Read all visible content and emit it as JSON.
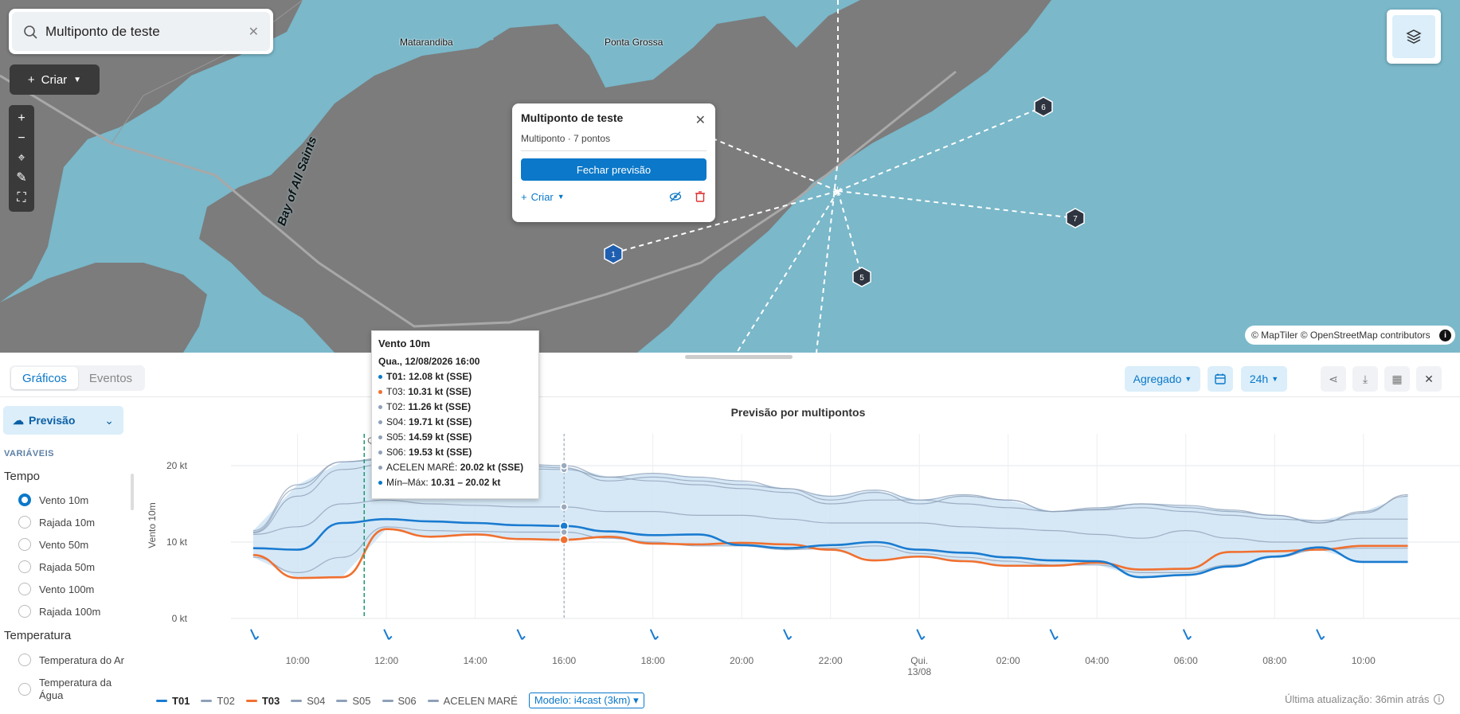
{
  "map": {
    "search_value": "Multiponto de teste",
    "criar_label": "Criar",
    "places": [
      "Matarandiba",
      "Ponta Grossa"
    ],
    "bay_label": "Bay of All Saints",
    "attribution": "© MapTiler © OpenStreetMap contributors",
    "markers": [
      "1",
      "5",
      "6",
      "7"
    ],
    "colors": {
      "water": "#7ab8ca",
      "land": "#7c7c7c",
      "accent": "#0b78c9"
    }
  },
  "popup": {
    "title": "Multiponto de teste",
    "subtitle": "Multiponto · 7 pontos",
    "close_forecast": "Fechar previsão",
    "criar_label": "Criar"
  },
  "toolbar": {
    "tabs": [
      "Gráficos",
      "Eventos"
    ],
    "aggregate": "Agregado",
    "range": "24h"
  },
  "sidebar": {
    "mode": "Previsão",
    "vars_header": "VARIÁVEIS",
    "groups": [
      {
        "label": "Tempo",
        "items": [
          {
            "label": "Vento 10m",
            "selected": true
          },
          {
            "label": "Rajada 10m",
            "selected": false
          },
          {
            "label": "Vento 50m",
            "selected": false
          },
          {
            "label": "Rajada 50m",
            "selected": false
          },
          {
            "label": "Vento 100m",
            "selected": false
          },
          {
            "label": "Rajada 100m",
            "selected": false
          }
        ]
      },
      {
        "label": "Temperatura",
        "items": [
          {
            "label": "Temperatura do Ar",
            "selected": false
          },
          {
            "label": "Temperatura da Água",
            "selected": false
          }
        ]
      }
    ]
  },
  "tooltip": {
    "title": "Vento 10m",
    "date": "Qua., 12/08/2026 16:00",
    "rows": [
      {
        "name": "T01",
        "value": "12.08 kt (SSE)",
        "color": "#0b78c9",
        "bold_name": true
      },
      {
        "name": "T03",
        "value": "10.31 kt (SSE)",
        "color": "#f07030",
        "bold_name": false
      },
      {
        "name": "T02",
        "value": "11.26 kt (SSE)",
        "color": "#8fa0b8",
        "bold_name": false
      },
      {
        "name": "S04",
        "value": "19.71 kt (SSE)",
        "color": "#8fa0b8",
        "bold_name": false
      },
      {
        "name": "S05",
        "value": "14.59 kt (SSE)",
        "color": "#8fa0b8",
        "bold_name": false
      },
      {
        "name": "S06",
        "value": "19.53 kt (SSE)",
        "color": "#8fa0b8",
        "bold_name": false
      },
      {
        "name": "ACELEN MARÉ",
        "value": "20.02 kt (SSE)",
        "color": "#8fa0b8",
        "bold_name": false
      },
      {
        "name": "Mín–Máx",
        "value": "10.31 – 20.02 kt",
        "color": "#0b78c9",
        "bold_name": false
      }
    ]
  },
  "chart_data": {
    "type": "line",
    "title": "Previsão por multipontos",
    "ylabel": "Vento 10m",
    "ylim": [
      0,
      20
    ],
    "y_ticks": [
      "0 kt",
      "10 kt",
      "20 kt"
    ],
    "x_ticks": [
      "10:00",
      "12:00",
      "14:00",
      "16:00",
      "18:00",
      "20:00",
      "22:00",
      "Qui.\n13/08",
      "02:00",
      "04:00",
      "06:00",
      "08:00",
      "10:00"
    ],
    "now_marker_label": "Qua...",
    "hover_x": "16:00",
    "x": [
      9,
      10,
      11,
      12,
      13,
      14,
      15,
      16,
      17,
      18,
      19,
      20,
      21,
      22,
      23,
      24,
      25,
      26,
      27,
      28,
      29,
      30,
      31,
      32,
      33,
      34,
      35
    ],
    "series": [
      {
        "name": "T01",
        "color": "#1a7bd0",
        "values": [
          9.2,
          9.0,
          12.5,
          13.0,
          12.7,
          12.5,
          12.2,
          12.1,
          11.4,
          10.9,
          11.0,
          9.6,
          9.2,
          9.6,
          10.0,
          9.0,
          8.6,
          8.0,
          7.6,
          7.5,
          5.4,
          5.7,
          6.8,
          8.1,
          9.3,
          7.4,
          7.4
        ]
      },
      {
        "name": "T02",
        "color": "#8fa0b8",
        "values": [
          8.0,
          6.0,
          8.0,
          12.0,
          11.5,
          11.4,
          11.3,
          11.3,
          10.5,
          10.0,
          9.5,
          9.5,
          9.0,
          9.2,
          9.5,
          8.5,
          8.0,
          7.5,
          7.0,
          7.0,
          6.0,
          6.0,
          7.0,
          8.0,
          9.0,
          9.2,
          9.2
        ]
      },
      {
        "name": "T03",
        "color": "#f07030",
        "values": [
          8.3,
          5.3,
          5.4,
          11.7,
          10.7,
          11.0,
          10.4,
          10.3,
          10.7,
          9.8,
          9.7,
          9.9,
          9.7,
          9.0,
          7.6,
          8.1,
          7.5,
          6.9,
          6.9,
          7.3,
          6.4,
          6.5,
          8.7,
          8.8,
          9.0,
          9.5,
          9.5
        ]
      },
      {
        "name": "S04",
        "color": "#8fa0b8",
        "values": [
          11.3,
          17.0,
          20.5,
          20.8,
          20.6,
          20.4,
          20.0,
          19.7,
          18.0,
          18.5,
          18.0,
          17.5,
          17.0,
          15.5,
          16.5,
          15.0,
          16.0,
          15.5,
          14.0,
          14.5,
          15.0,
          14.5,
          14.0,
          13.5,
          12.5,
          14.0,
          16.0
        ]
      },
      {
        "name": "S05",
        "color": "#8fa0b8",
        "values": [
          11.0,
          12.0,
          15.0,
          15.5,
          15.0,
          14.8,
          14.6,
          14.6,
          14.0,
          14.0,
          13.5,
          13.5,
          13.0,
          12.5,
          12.5,
          12.5,
          12.0,
          11.8,
          11.5,
          11.0,
          10.5,
          11.5,
          10.5,
          10.0,
          10.0,
          10.5,
          10.5
        ]
      },
      {
        "name": "S06",
        "color": "#8fa0b8",
        "values": [
          11.2,
          16.0,
          19.5,
          20.2,
          20.0,
          19.8,
          19.6,
          19.5,
          18.5,
          18.0,
          17.5,
          17.0,
          16.5,
          15.0,
          15.5,
          15.5,
          15.0,
          14.5,
          14.0,
          14.2,
          14.5,
          14.0,
          13.5,
          13.0,
          12.8,
          13.0,
          13.0
        ]
      },
      {
        "name": "ACELEN MARÉ",
        "color": "#8fa0b8",
        "values": [
          11.5,
          17.5,
          20.5,
          21.0,
          20.8,
          20.5,
          20.2,
          20.0,
          18.5,
          19.0,
          18.5,
          18.0,
          17.0,
          16.0,
          16.8,
          15.5,
          16.2,
          15.5,
          14.0,
          14.3,
          15.0,
          14.8,
          14.2,
          13.5,
          12.5,
          13.8,
          16.2
        ]
      }
    ],
    "legend_placement": "bottom",
    "model_label": "Modelo: i4cast (3km)",
    "last_update": "Última atualização: 36min atrás"
  }
}
